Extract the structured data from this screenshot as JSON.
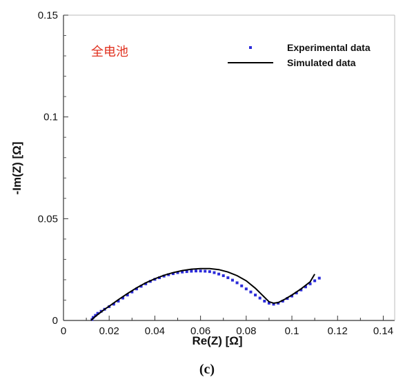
{
  "caption": "(c)",
  "chart_data": {
    "type": "scatter",
    "title": "",
    "annotation": "全电池",
    "xlabel": "Re(Z) [Ω]",
    "ylabel": "-Im(Z) [Ω]",
    "xlim": [
      0,
      0.145
    ],
    "ylim": [
      0,
      0.15
    ],
    "x_ticks": [
      0,
      0.02,
      0.04,
      0.06,
      0.08,
      0.1,
      0.12,
      0.14
    ],
    "x_tick_labels": [
      "0",
      "0.02",
      "0.04",
      "0.06",
      "0.08",
      "0.1",
      "0.12",
      "0.14"
    ],
    "y_ticks": [
      0,
      0.05,
      0.1,
      0.15
    ],
    "y_tick_labels": [
      "0",
      "0.05",
      "0.1",
      "0.15"
    ],
    "grid": false,
    "legend_position": "top-right",
    "series": [
      {
        "name": "Experimental data",
        "kind": "points",
        "color": "#2b2bd9",
        "x": [
          0.0125,
          0.013,
          0.014,
          0.015,
          0.0165,
          0.018,
          0.02,
          0.022,
          0.024,
          0.026,
          0.028,
          0.03,
          0.032,
          0.034,
          0.036,
          0.038,
          0.04,
          0.042,
          0.044,
          0.046,
          0.048,
          0.05,
          0.052,
          0.054,
          0.056,
          0.058,
          0.06,
          0.062,
          0.064,
          0.066,
          0.068,
          0.07,
          0.072,
          0.074,
          0.076,
          0.078,
          0.08,
          0.082,
          0.084,
          0.086,
          0.088,
          0.09,
          0.092,
          0.094,
          0.096,
          0.098,
          0.1,
          0.102,
          0.104,
          0.106,
          0.108,
          0.11,
          0.112
        ],
        "y": [
          0.0005,
          0.0015,
          0.0025,
          0.0035,
          0.0045,
          0.0055,
          0.0068,
          0.008,
          0.0095,
          0.011,
          0.0125,
          0.014,
          0.0155,
          0.0168,
          0.018,
          0.0192,
          0.0202,
          0.021,
          0.0218,
          0.0225,
          0.023,
          0.0235,
          0.0238,
          0.024,
          0.0242,
          0.0243,
          0.0243,
          0.0242,
          0.024,
          0.0235,
          0.0228,
          0.022,
          0.021,
          0.0198,
          0.0185,
          0.017,
          0.0155,
          0.014,
          0.0125,
          0.011,
          0.0095,
          0.0085,
          0.008,
          0.0085,
          0.0095,
          0.0108,
          0.012,
          0.0135,
          0.015,
          0.0165,
          0.018,
          0.0195,
          0.0208
        ]
      },
      {
        "name": "Simulated data",
        "kind": "line",
        "color": "#000000",
        "x": [
          0.012,
          0.014,
          0.016,
          0.018,
          0.02,
          0.024,
          0.028,
          0.032,
          0.036,
          0.04,
          0.044,
          0.048,
          0.052,
          0.056,
          0.06,
          0.064,
          0.068,
          0.072,
          0.076,
          0.08,
          0.084,
          0.087,
          0.09,
          0.092,
          0.094,
          0.097,
          0.1,
          0.104,
          0.108,
          0.11
        ],
        "y": [
          0.0,
          0.002,
          0.0038,
          0.0055,
          0.007,
          0.0102,
          0.0132,
          0.016,
          0.0185,
          0.0205,
          0.0222,
          0.0235,
          0.0245,
          0.0252,
          0.0255,
          0.0255,
          0.025,
          0.0238,
          0.022,
          0.0195,
          0.0158,
          0.0125,
          0.0092,
          0.0085,
          0.0088,
          0.0105,
          0.0125,
          0.0155,
          0.019,
          0.0228
        ]
      }
    ]
  }
}
